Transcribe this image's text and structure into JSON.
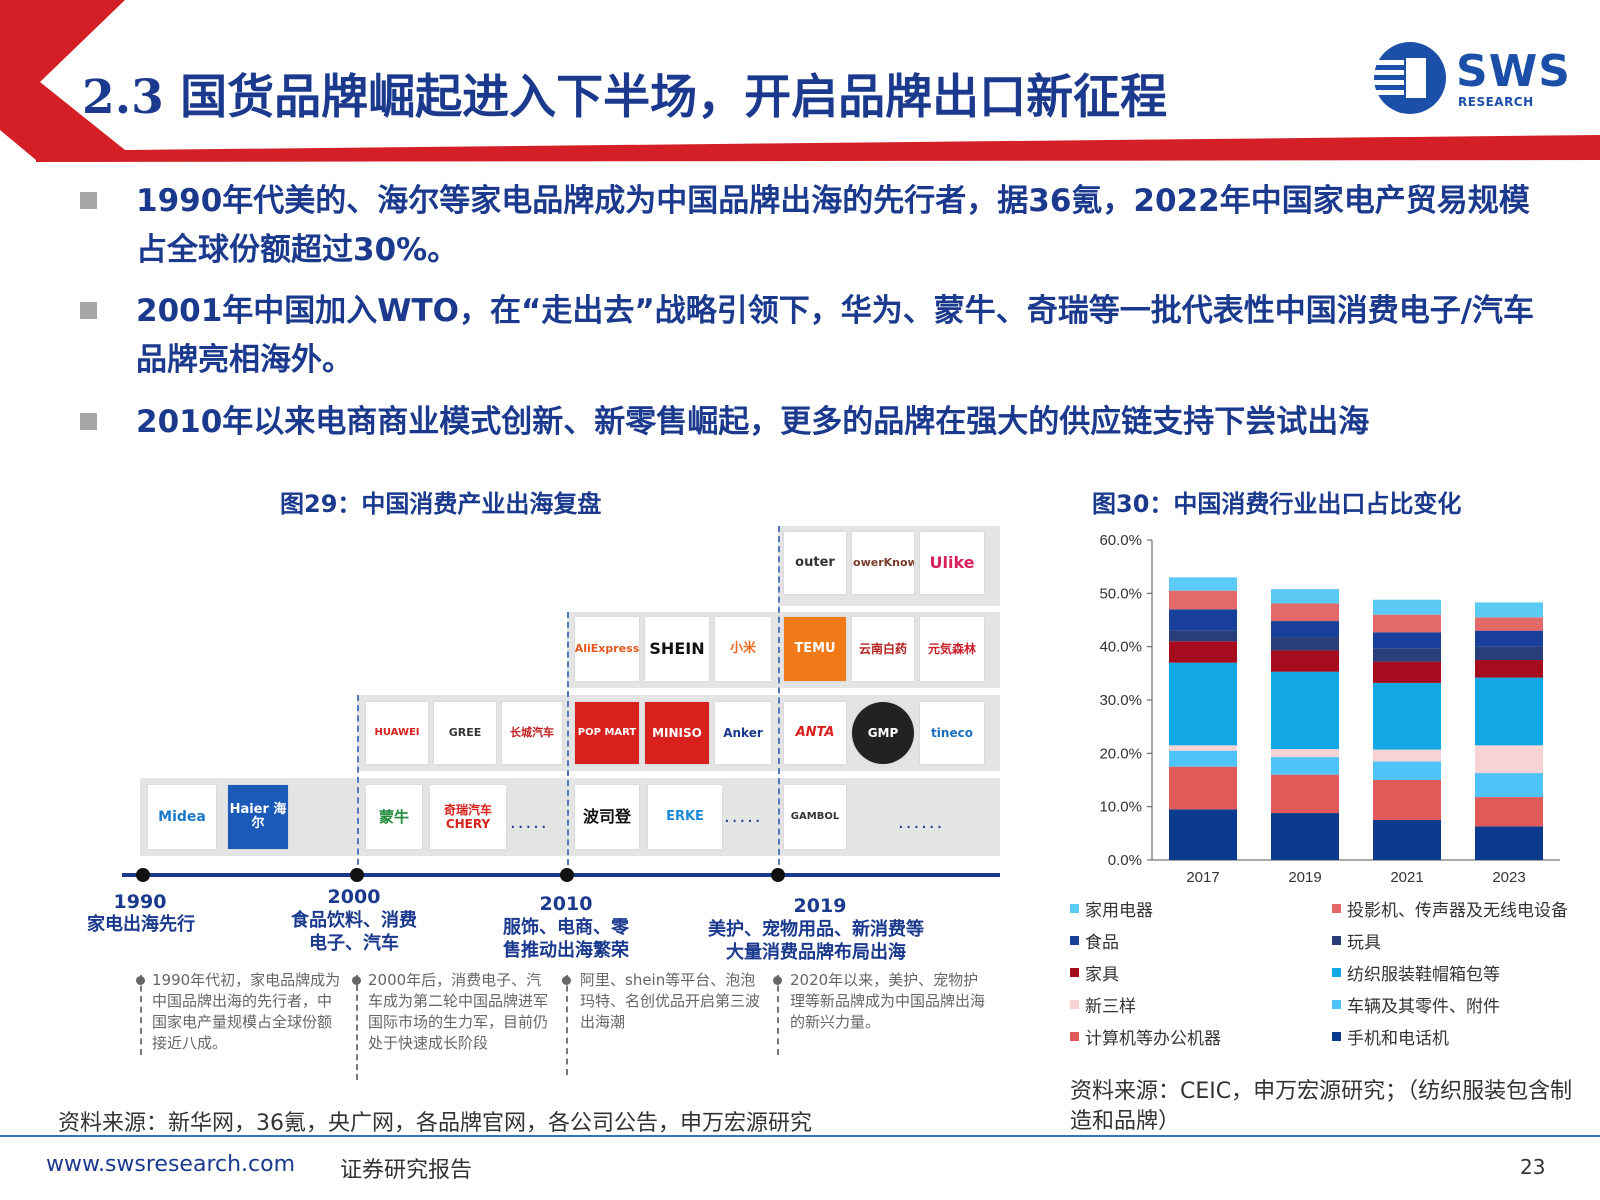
{
  "header": {
    "title": "2.3 国货品牌崛起进入下半场，开启品牌出口新征程",
    "logo_text": "SWS",
    "logo_sub": "RESEARCH",
    "accent_red": "#d41f26",
    "accent_blue": "#1b3a8e"
  },
  "bullets": [
    "1990年代美的、海尔等家电品牌成为中国品牌出海的先行者，据36氪，2022年中国家电产贸易规模占全球份额超过30%。",
    "2001年中国加入WTO，在“走出去”战略引领下，华为、蒙牛、奇瑞等一批代表性中国消费电子/汽车品牌亮相海外。",
    "2010年以来电商商业模式创新、新零售崛起，更多的品牌在强大的供应链支持下尝试出海"
  ],
  "fig29": {
    "title": "图29：中国消费产业出海复盘",
    "row_top": [
      "outer",
      "FlowerKnows",
      "Ulike"
    ],
    "row_3": [
      "AliExpress",
      "SHEIN",
      "小米",
      "TEMU",
      "云南白药",
      "元気森林"
    ],
    "row_2": [
      "HUAWEI",
      "GREE",
      "长城汽车",
      "POP MART",
      "MINISO",
      "Anker",
      "ANTA",
      "GMP",
      "tineco"
    ],
    "row_1": [
      "Midea",
      "Haier 海尔",
      "蒙牛",
      "奇瑞汽车 CHERY",
      "波司登",
      "ERKE",
      "GAMBOL"
    ],
    "ellipsis": ".....",
    "ellipsis_long": "......",
    "milestones": [
      {
        "year": "1990",
        "era": "家电出海先行",
        "note": "1990年代初，家电品牌成为中国品牌出海的先行者，中国家电产量规模占全球份额接近八成。"
      },
      {
        "year": "2000",
        "era": "食品饮料、消费电子、汽车",
        "note": "2000年后，消费电子、汽车成为第二轮中国品牌进军国际市场的生力军，目前仍处于快速成长阶段"
      },
      {
        "year": "2010",
        "era": "服饰、电商、零售推动出海繁荣",
        "note": "阿里、shein等平台、泡泡玛特、名创优品开启第三波出海潮"
      },
      {
        "year": "2019",
        "era": "美护、宠物用品、新消费等大量消费品牌布局出海",
        "note": "2020年以来，美护、宠物护理等新品牌成为中国品牌出海的新兴力量。"
      }
    ],
    "source": "资料来源：新华网，36氪，央广网，各品牌官网，各公司公告，申万宏源研究"
  },
  "chart_data": {
    "type": "bar",
    "stacked": true,
    "title": "图30：中国消费行业出口占比变化",
    "categories": [
      "2017",
      "2019",
      "2021",
      "2023"
    ],
    "ylim": [
      0,
      60
    ],
    "y_ticks": [
      "0.0%",
      "10.0%",
      "20.0%",
      "30.0%",
      "40.0%",
      "50.0%",
      "60.0%"
    ],
    "legend_position": "bottom",
    "series": [
      {
        "name": "手机和电话机",
        "color": "#0c3a8e",
        "values": [
          9.5,
          8.8,
          7.5,
          6.3
        ]
      },
      {
        "name": "计算机等办公机器",
        "color": "#e05a5a",
        "values": [
          8.0,
          7.2,
          7.5,
          5.5
        ]
      },
      {
        "name": "车辆及其零件、附件",
        "color": "#4fc3f7",
        "values": [
          3.0,
          3.3,
          3.5,
          4.5
        ]
      },
      {
        "name": "新三样",
        "color": "#f8d3d3",
        "values": [
          1.0,
          1.5,
          2.2,
          5.2
        ]
      },
      {
        "name": "纺织服装鞋帽箱包等",
        "color": "#12a8e6",
        "values": [
          15.5,
          14.5,
          12.5,
          12.7
        ]
      },
      {
        "name": "家具",
        "color": "#a50d1f",
        "values": [
          4.0,
          4.0,
          4.0,
          3.3
        ]
      },
      {
        "name": "玩具",
        "color": "#2a3f7a",
        "values": [
          2.0,
          2.5,
          2.5,
          2.5
        ]
      },
      {
        "name": "食品",
        "color": "#183f99",
        "values": [
          4.0,
          3.0,
          3.0,
          3.0
        ]
      },
      {
        "name": "投影机、传声器及无线电设备",
        "color": "#e46a6a",
        "values": [
          3.5,
          3.3,
          3.3,
          2.5
        ]
      },
      {
        "name": "家用电器",
        "color": "#5bcbf5",
        "values": [
          2.5,
          2.7,
          2.8,
          2.8
        ]
      }
    ],
    "legend": [
      {
        "label": "家用电器",
        "color": "#5bcbf5"
      },
      {
        "label": "投影机、传声器及无线电设备",
        "color": "#e46a6a"
      },
      {
        "label": "食品",
        "color": "#183f99"
      },
      {
        "label": "玩具",
        "color": "#2a3f7a"
      },
      {
        "label": "家具",
        "color": "#a50d1f"
      },
      {
        "label": "纺织服装鞋帽箱包等",
        "color": "#12a8e6"
      },
      {
        "label": "新三样",
        "color": "#f8d3d3"
      },
      {
        "label": "车辆及其零件、附件",
        "color": "#4fc3f7"
      },
      {
        "label": "计算机等办公机器",
        "color": "#e05a5a"
      },
      {
        "label": "手机和电话机",
        "color": "#0c3a8e"
      }
    ],
    "source": "资料来源：CEIC，申万宏源研究；（纺织服装包含制造和品牌）"
  },
  "footer": {
    "url": "www.swsresearch.com",
    "doc_type": "证券研究报告",
    "page": "23"
  }
}
